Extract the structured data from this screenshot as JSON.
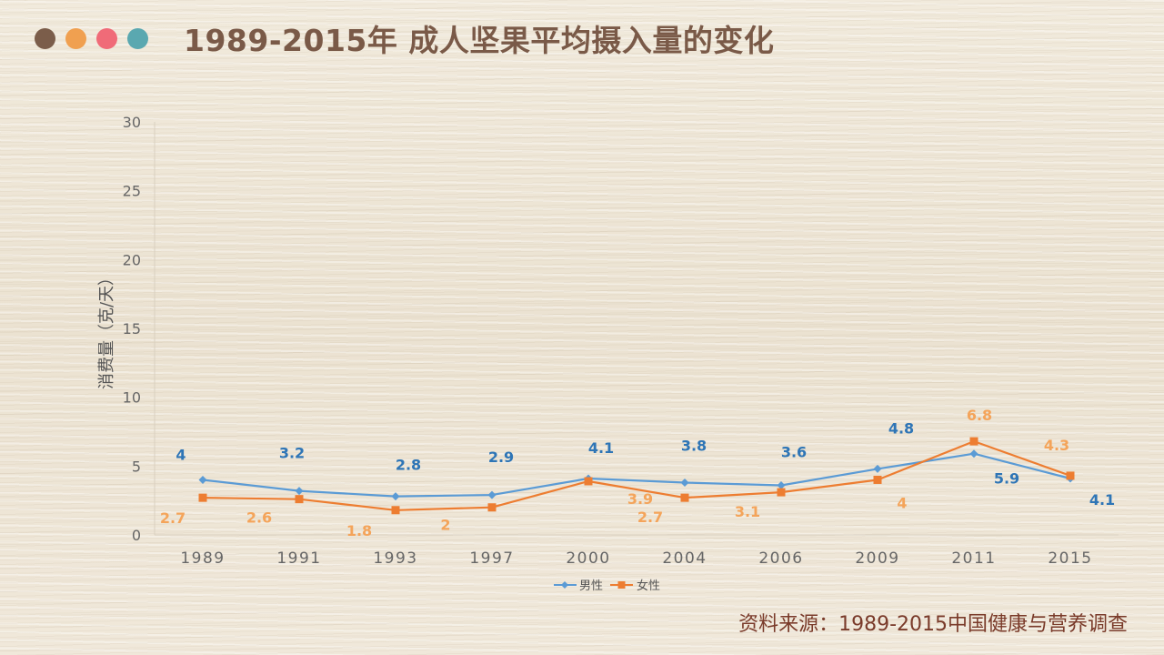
{
  "header": {
    "title": "1989-2015年 成人坚果平均摄入量的变化",
    "dot_colors": [
      "#7b5d4a",
      "#f0a050",
      "#f06b78",
      "#5aa8b0"
    ]
  },
  "source": "资料来源：1989-2015中国健康与营养调查",
  "chart_data": {
    "type": "line",
    "title": "1989-2015年 成人坚果平均摄入量的变化",
    "ylabel": "消费量（克/天）",
    "xlabel": "",
    "categories": [
      "1989",
      "1991",
      "1993",
      "1997",
      "2000",
      "2004",
      "2006",
      "2009",
      "2011",
      "2015"
    ],
    "ylim": [
      0,
      30
    ],
    "yticks": [
      "0",
      "5",
      "10",
      "15",
      "20",
      "25",
      "30"
    ],
    "grid": false,
    "legend": "bottom",
    "series": [
      {
        "name": "男性",
        "color": "#5b9bd5",
        "label_color": "#2e75b6",
        "marker": "diamond",
        "values": [
          4,
          3.2,
          2.8,
          2.9,
          4.1,
          3.8,
          3.6,
          4.8,
          5.9,
          4.1
        ],
        "labels": [
          "4",
          "3.2",
          "2.8",
          "2.9",
          "4.1",
          "3.8",
          "3.6",
          "4.8",
          "5.9",
          "4.1"
        ]
      },
      {
        "name": "女性",
        "color": "#ed7d31",
        "label_color": "#f4a45a",
        "marker": "square",
        "values": [
          2.7,
          2.6,
          1.8,
          2,
          3.9,
          2.7,
          3.1,
          4,
          6.8,
          4.3
        ],
        "labels": [
          "2.7",
          "2.6",
          "1.8",
          "2",
          "3.9",
          "2.7",
          "3.1",
          "4",
          "6.8",
          "4.3"
        ]
      }
    ]
  }
}
